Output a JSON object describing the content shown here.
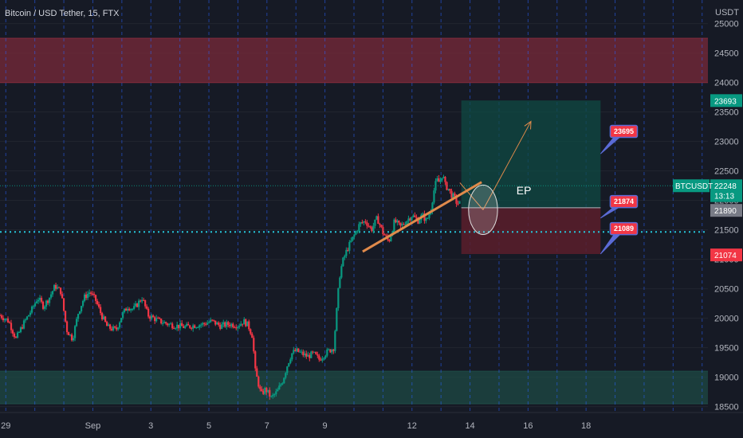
{
  "chart_data": {
    "type": "candlestick",
    "title": "Bitcoin / USD Tether, 15, FTX",
    "y_unit_label": "USDT",
    "ylim": [
      18400,
      25400
    ],
    "y_ticks": [
      18500,
      19000,
      19500,
      20000,
      20500,
      21000,
      21500,
      22000,
      22500,
      23000,
      23500,
      24000,
      24500,
      25000
    ],
    "x_ticks": [
      {
        "label": "29",
        "day": 0
      },
      {
        "label": "Sep",
        "day": 3
      },
      {
        "label": "3",
        "day": 5
      },
      {
        "label": "5",
        "day": 7
      },
      {
        "label": "7",
        "day": 9
      },
      {
        "label": "9",
        "day": 11
      },
      {
        "label": "12",
        "day": 14
      },
      {
        "label": "14",
        "day": 16
      },
      {
        "label": "16",
        "day": 18
      },
      {
        "label": "18",
        "day": 20
      }
    ],
    "xlim_days": [
      -0.2,
      24.2
    ],
    "price_path": [
      [
        -0.2,
        20050
      ],
      [
        0.1,
        19950
      ],
      [
        0.35,
        19650
      ],
      [
        0.6,
        19900
      ],
      [
        0.9,
        20150
      ],
      [
        1.1,
        20350
      ],
      [
        1.3,
        20200
      ],
      [
        1.5,
        20350
      ],
      [
        1.7,
        20550
      ],
      [
        1.9,
        20450
      ],
      [
        2.1,
        19800
      ],
      [
        2.3,
        19650
      ],
      [
        2.5,
        20100
      ],
      [
        2.7,
        20350
      ],
      [
        2.9,
        20450
      ],
      [
        3.1,
        20300
      ],
      [
        3.3,
        20050
      ],
      [
        3.5,
        19850
      ],
      [
        3.8,
        19800
      ],
      [
        4.0,
        20050
      ],
      [
        4.2,
        20200
      ],
      [
        4.4,
        20150
      ],
      [
        4.7,
        20350
      ],
      [
        4.9,
        20050
      ],
      [
        5.1,
        20000
      ],
      [
        5.3,
        19950
      ],
      [
        5.6,
        19900
      ],
      [
        5.9,
        19870
      ],
      [
        6.2,
        19850
      ],
      [
        6.5,
        19880
      ],
      [
        6.8,
        19900
      ],
      [
        7.1,
        19950
      ],
      [
        7.4,
        19870
      ],
      [
        7.7,
        19900
      ],
      [
        8.0,
        19880
      ],
      [
        8.2,
        19950
      ],
      [
        8.35,
        19880
      ],
      [
        8.5,
        19700
      ],
      [
        8.6,
        19100
      ],
      [
        8.7,
        18900
      ],
      [
        8.8,
        18700
      ],
      [
        8.95,
        18800
      ],
      [
        9.15,
        18650
      ],
      [
        9.35,
        18750
      ],
      [
        9.55,
        18950
      ],
      [
        9.7,
        19200
      ],
      [
        9.85,
        19400
      ],
      [
        10.0,
        19450
      ],
      [
        10.2,
        19400
      ],
      [
        10.4,
        19350
      ],
      [
        10.6,
        19400
      ],
      [
        10.8,
        19300
      ],
      [
        11.0,
        19400
      ],
      [
        11.15,
        19450
      ],
      [
        11.3,
        19500
      ],
      [
        11.4,
        20100
      ],
      [
        11.5,
        20700
      ],
      [
        11.6,
        20950
      ],
      [
        11.75,
        21150
      ],
      [
        11.9,
        21300
      ],
      [
        12.05,
        21450
      ],
      [
        12.2,
        21600
      ],
      [
        12.4,
        21650
      ],
      [
        12.6,
        21500
      ],
      [
        12.8,
        21700
      ],
      [
        13.0,
        21450
      ],
      [
        13.2,
        21300
      ],
      [
        13.4,
        21650
      ],
      [
        13.6,
        21550
      ],
      [
        13.8,
        21650
      ],
      [
        14.0,
        21750
      ],
      [
        14.2,
        21650
      ],
      [
        14.35,
        21750
      ],
      [
        14.5,
        21650
      ],
      [
        14.65,
        21850
      ],
      [
        14.75,
        22150
      ],
      [
        14.85,
        22350
      ],
      [
        14.95,
        22300
      ],
      [
        15.05,
        22450
      ],
      [
        15.15,
        22250
      ],
      [
        15.25,
        22200
      ],
      [
        15.35,
        22100
      ],
      [
        15.45,
        22050
      ],
      [
        15.55,
        21950
      ],
      [
        15.65,
        21950
      ]
    ],
    "zones": [
      {
        "name": "resistance-zone",
        "y_low": 24000,
        "y_high": 24750,
        "color": "#7a2a3a"
      },
      {
        "name": "support-zone",
        "y_low": 18550,
        "y_high": 19100,
        "color": "#1e4a44"
      }
    ],
    "position": {
      "entry": 21874,
      "target": 23695,
      "stop": 21089,
      "x_start_day": 15.7,
      "x_end_day": 20.5
    },
    "horizontal_levels": [
      {
        "y": 21465,
        "color": "#26c6da"
      }
    ],
    "current_price_line": 22248,
    "trend_line": [
      [
        12.3,
        21130
      ],
      [
        16.4,
        22310
      ]
    ],
    "arrows": [
      [
        15.65,
        22300
      ],
      [
        16.45,
        21840
      ],
      [
        16.45,
        21840
      ],
      [
        18.1,
        23340
      ]
    ],
    "ellipse": {
      "cx_day": 16.45,
      "cy": 21840,
      "rx_day": 0.5,
      "ry": 420
    },
    "labels": [
      {
        "text": "EP",
        "x_day": 17.6,
        "y": 22100
      }
    ],
    "callouts": [
      {
        "text": "23695",
        "x_day": 21.3,
        "y": 23170,
        "pointer_y": 22790,
        "pointer_x_day": 20.5
      },
      {
        "text": "21874",
        "x_day": 21.3,
        "y": 21980,
        "pointer_y": 21700,
        "pointer_x_day": 20.5
      },
      {
        "text": "21089",
        "x_day": 21.3,
        "y": 21520,
        "pointer_y": 21090,
        "pointer_x_day": 20.5
      }
    ],
    "price_tags": [
      {
        "text": "23693",
        "y": 23693,
        "color": "#089981"
      },
      {
        "text": "22248",
        "y": 22248,
        "color": "#089981"
      },
      {
        "text": "13:13",
        "y": 22080,
        "color": "#089981"
      },
      {
        "text": "21890",
        "y": 21830,
        "color": "#787b86"
      },
      {
        "text": "21074",
        "y": 21074,
        "color": "#f23645"
      }
    ],
    "symbol_tag": {
      "text": "BTCUSDT",
      "y": 22248,
      "color": "#089981"
    },
    "colors": {
      "up": "#089981",
      "down": "#f23645",
      "background": "#161a25",
      "grid": "#2a2e39",
      "dashed_vline": "#2962ff",
      "trend": "#e08a4b"
    }
  }
}
